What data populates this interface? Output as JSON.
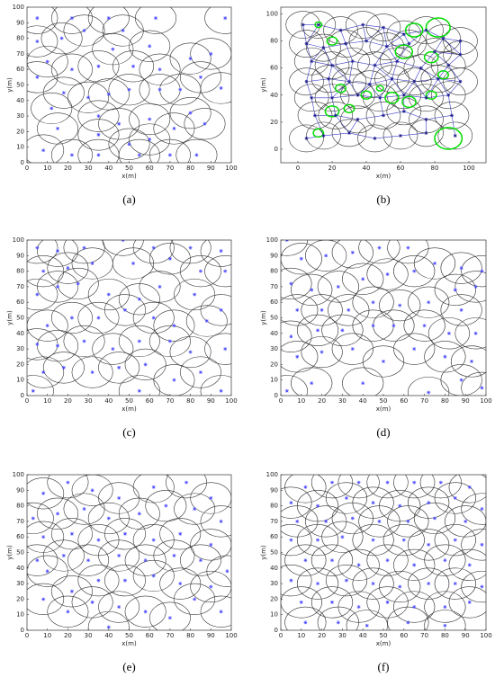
{
  "chart_data": [
    {
      "type": "scatter",
      "label": "(a)",
      "xlabel": "x(m)",
      "ylabel": "y(m)",
      "xlim": [
        0,
        100
      ],
      "ylim": [
        0,
        100
      ],
      "xticks": [
        0,
        10,
        20,
        30,
        40,
        50,
        60,
        70,
        80,
        90,
        100
      ],
      "yticks": [
        0,
        10,
        20,
        30,
        40,
        50,
        60,
        70,
        80,
        90,
        100
      ],
      "radius": 10,
      "point_color": "#4a4aff",
      "circle_color": "#333333",
      "x": [
        5,
        22,
        40,
        63,
        97,
        5,
        17,
        28,
        47,
        42,
        60,
        80,
        90,
        10,
        22,
        35,
        52,
        65,
        85,
        5,
        18,
        30,
        40,
        50,
        65,
        75,
        95,
        12,
        35,
        45,
        60,
        80,
        87,
        15,
        35,
        50,
        60,
        72,
        8,
        22,
        35,
        55,
        70,
        83
      ],
      "y": [
        93,
        93,
        93,
        93,
        93,
        78,
        80,
        85,
        85,
        73,
        75,
        67,
        70,
        65,
        60,
        62,
        62,
        60,
        55,
        55,
        45,
        42,
        44,
        47,
        47,
        47,
        48,
        35,
        30,
        25,
        28,
        32,
        25,
        22,
        18,
        12,
        15,
        22,
        8,
        5,
        5,
        5,
        5,
        5
      ]
    },
    {
      "type": "scatter",
      "label": "(b)",
      "xlabel": "x(m)",
      "ylabel": "y(m)",
      "xlim": [
        -10,
        110
      ],
      "ylim": [
        -10,
        105
      ],
      "xticks": [
        0,
        20,
        40,
        60,
        80,
        100
      ],
      "yticks": [
        0,
        20,
        40,
        60,
        80,
        100
      ],
      "radius": 10,
      "point_color": "#1a1a8a",
      "circle_color": "#333333",
      "links": true,
      "link_color": "#3a3ac8",
      "green_color": "#00dd00",
      "x": [
        3,
        12,
        25,
        38,
        50,
        62,
        75,
        85,
        95,
        5,
        15,
        28,
        40,
        52,
        65,
        80,
        95,
        8,
        20,
        32,
        45,
        58,
        72,
        88,
        5,
        18,
        30,
        42,
        55,
        68,
        82,
        95,
        8,
        20,
        35,
        48,
        62,
        75,
        88,
        10,
        22,
        35,
        50,
        62,
        75,
        90,
        5,
        15,
        30,
        45,
        60,
        75,
        92
      ],
      "y": [
        92,
        92,
        88,
        92,
        90,
        85,
        88,
        82,
        80,
        78,
        75,
        78,
        80,
        76,
        78,
        72,
        70,
        65,
        62,
        65,
        62,
        65,
        60,
        62,
        50,
        52,
        50,
        48,
        52,
        50,
        52,
        50,
        38,
        38,
        40,
        38,
        40,
        38,
        40,
        25,
        25,
        22,
        25,
        28,
        22,
        25,
        8,
        10,
        12,
        8,
        10,
        12,
        10
      ],
      "green": {
        "x": [
          88,
          82,
          68,
          62,
          78,
          20,
          12,
          25,
          55,
          65,
          78,
          40,
          20,
          30,
          12,
          48,
          85
        ],
        "y": [
          8,
          90,
          88,
          72,
          68,
          80,
          92,
          45,
          38,
          35,
          40,
          40,
          28,
          30,
          12,
          45,
          55
        ],
        "r": [
          8,
          7,
          5,
          5,
          4,
          3,
          2,
          3,
          4,
          4,
          3,
          3,
          4,
          3,
          3,
          2,
          3
        ]
      }
    },
    {
      "type": "scatter",
      "label": "(c)",
      "xlabel": "x(m)",
      "ylabel": "y(m)",
      "xlim": [
        0,
        100
      ],
      "ylim": [
        0,
        100
      ],
      "xticks": [
        0,
        10,
        20,
        30,
        40,
        50,
        60,
        70,
        80,
        90,
        100
      ],
      "yticks": [
        0,
        10,
        20,
        30,
        40,
        50,
        60,
        70,
        80,
        90,
        100
      ],
      "radius": 10,
      "point_color": "#4a4aff",
      "circle_color": "#333333",
      "x": [
        5,
        15,
        28,
        47,
        62,
        80,
        95,
        8,
        20,
        32,
        52,
        70,
        85,
        97,
        5,
        15,
        25,
        40,
        55,
        65,
        82,
        95,
        10,
        22,
        35,
        48,
        62,
        72,
        88,
        5,
        15,
        28,
        42,
        55,
        70,
        80,
        97,
        8,
        18,
        32,
        45,
        58,
        72,
        85,
        95,
        3,
        55
      ],
      "y": [
        95,
        93,
        95,
        100,
        95,
        95,
        93,
        80,
        82,
        85,
        85,
        88,
        80,
        80,
        65,
        70,
        72,
        65,
        62,
        70,
        65,
        55,
        45,
        50,
        50,
        55,
        50,
        45,
        48,
        33,
        32,
        35,
        30,
        35,
        35,
        28,
        30,
        15,
        18,
        15,
        18,
        20,
        10,
        15,
        3,
        3,
        3
      ]
    },
    {
      "type": "scatter",
      "label": "(d)",
      "xlabel": "x(m)",
      "ylabel": "y(m)",
      "xlim": [
        0,
        100
      ],
      "ylim": [
        0,
        100
      ],
      "xticks": [
        0,
        10,
        20,
        30,
        40,
        50,
        60,
        70,
        80,
        90,
        100
      ],
      "yticks": [
        0,
        10,
        20,
        30,
        40,
        50,
        60,
        70,
        80,
        90,
        100
      ],
      "radius": 10,
      "point_color": "#4a4aff",
      "circle_color": "#333333",
      "x": [
        3,
        10,
        22,
        35,
        48,
        62,
        75,
        88,
        98,
        5,
        15,
        28,
        40,
        52,
        65,
        85,
        95,
        8,
        20,
        33,
        45,
        58,
        72,
        88,
        5,
        18,
        30,
        45,
        55,
        70,
        82,
        95,
        8,
        20,
        35,
        50,
        65,
        80,
        93,
        3,
        15,
        40,
        72,
        88,
        98
      ],
      "y": [
        100,
        88,
        90,
        92,
        95,
        95,
        85,
        82,
        80,
        72,
        68,
        70,
        75,
        78,
        80,
        68,
        70,
        55,
        55,
        55,
        60,
        58,
        60,
        55,
        38,
        42,
        42,
        45,
        45,
        45,
        40,
        40,
        25,
        28,
        30,
        22,
        30,
        25,
        22,
        3,
        8,
        8,
        2,
        10,
        5
      ]
    },
    {
      "type": "scatter",
      "label": "(e)",
      "xlabel": "x(m)",
      "ylabel": "y(m)",
      "xlim": [
        0,
        100
      ],
      "ylim": [
        0,
        100
      ],
      "xticks": [
        0,
        10,
        20,
        30,
        40,
        50,
        60,
        70,
        80,
        90,
        100
      ],
      "yticks": [
        0,
        10,
        20,
        30,
        40,
        50,
        60,
        70,
        80,
        90,
        100
      ],
      "radius": 10,
      "point_color": "#4a4aff",
      "circle_color": "#333333",
      "x": [
        8,
        20,
        32,
        45,
        62,
        78,
        90,
        3,
        15,
        28,
        40,
        55,
        68,
        82,
        95,
        8,
        22,
        35,
        48,
        62,
        75,
        90,
        5,
        18,
        30,
        45,
        58,
        72,
        85,
        98,
        10,
        22,
        35,
        48,
        62,
        75,
        90,
        8,
        20,
        32,
        45,
        58,
        70,
        82,
        95,
        40
      ],
      "y": [
        88,
        95,
        90,
        85,
        92,
        95,
        85,
        72,
        75,
        78,
        72,
        75,
        80,
        78,
        70,
        60,
        62,
        58,
        62,
        58,
        62,
        55,
        45,
        48,
        45,
        48,
        45,
        48,
        45,
        38,
        38,
        25,
        32,
        32,
        35,
        30,
        28,
        20,
        12,
        18,
        15,
        12,
        8,
        20,
        12,
        2
      ]
    },
    {
      "type": "scatter",
      "label": "(f)",
      "xlabel": "x(m)",
      "ylabel": "y(m)",
      "xlim": [
        0,
        100
      ],
      "ylim": [
        0,
        100
      ],
      "xticks": [
        0,
        10,
        20,
        30,
        40,
        50,
        60,
        70,
        80,
        90,
        100
      ],
      "yticks": [
        0,
        10,
        20,
        30,
        40,
        50,
        60,
        70,
        80,
        90,
        100
      ],
      "radius": 10,
      "point_color": "#4a4aff",
      "circle_color": "#333333",
      "x": [
        12,
        25,
        38,
        52,
        65,
        78,
        92,
        5,
        18,
        32,
        45,
        58,
        72,
        85,
        98,
        8,
        22,
        35,
        48,
        62,
        75,
        90,
        5,
        18,
        30,
        45,
        60,
        72,
        85,
        98,
        12,
        25,
        38,
        52,
        65,
        80,
        92,
        5,
        18,
        32,
        45,
        58,
        72,
        85,
        98,
        10,
        25,
        38,
        52,
        65,
        80,
        92,
        12,
        28,
        42,
        62,
        80
      ],
      "y": [
        92,
        95,
        95,
        95,
        95,
        95,
        92,
        82,
        80,
        85,
        82,
        80,
        82,
        85,
        78,
        70,
        70,
        72,
        70,
        70,
        72,
        70,
        58,
        58,
        60,
        58,
        58,
        55,
        58,
        55,
        45,
        45,
        42,
        45,
        42,
        45,
        42,
        32,
        30,
        32,
        30,
        28,
        30,
        30,
        28,
        18,
        18,
        15,
        18,
        15,
        15,
        18,
        5,
        5,
        3,
        5,
        3
      ]
    }
  ]
}
